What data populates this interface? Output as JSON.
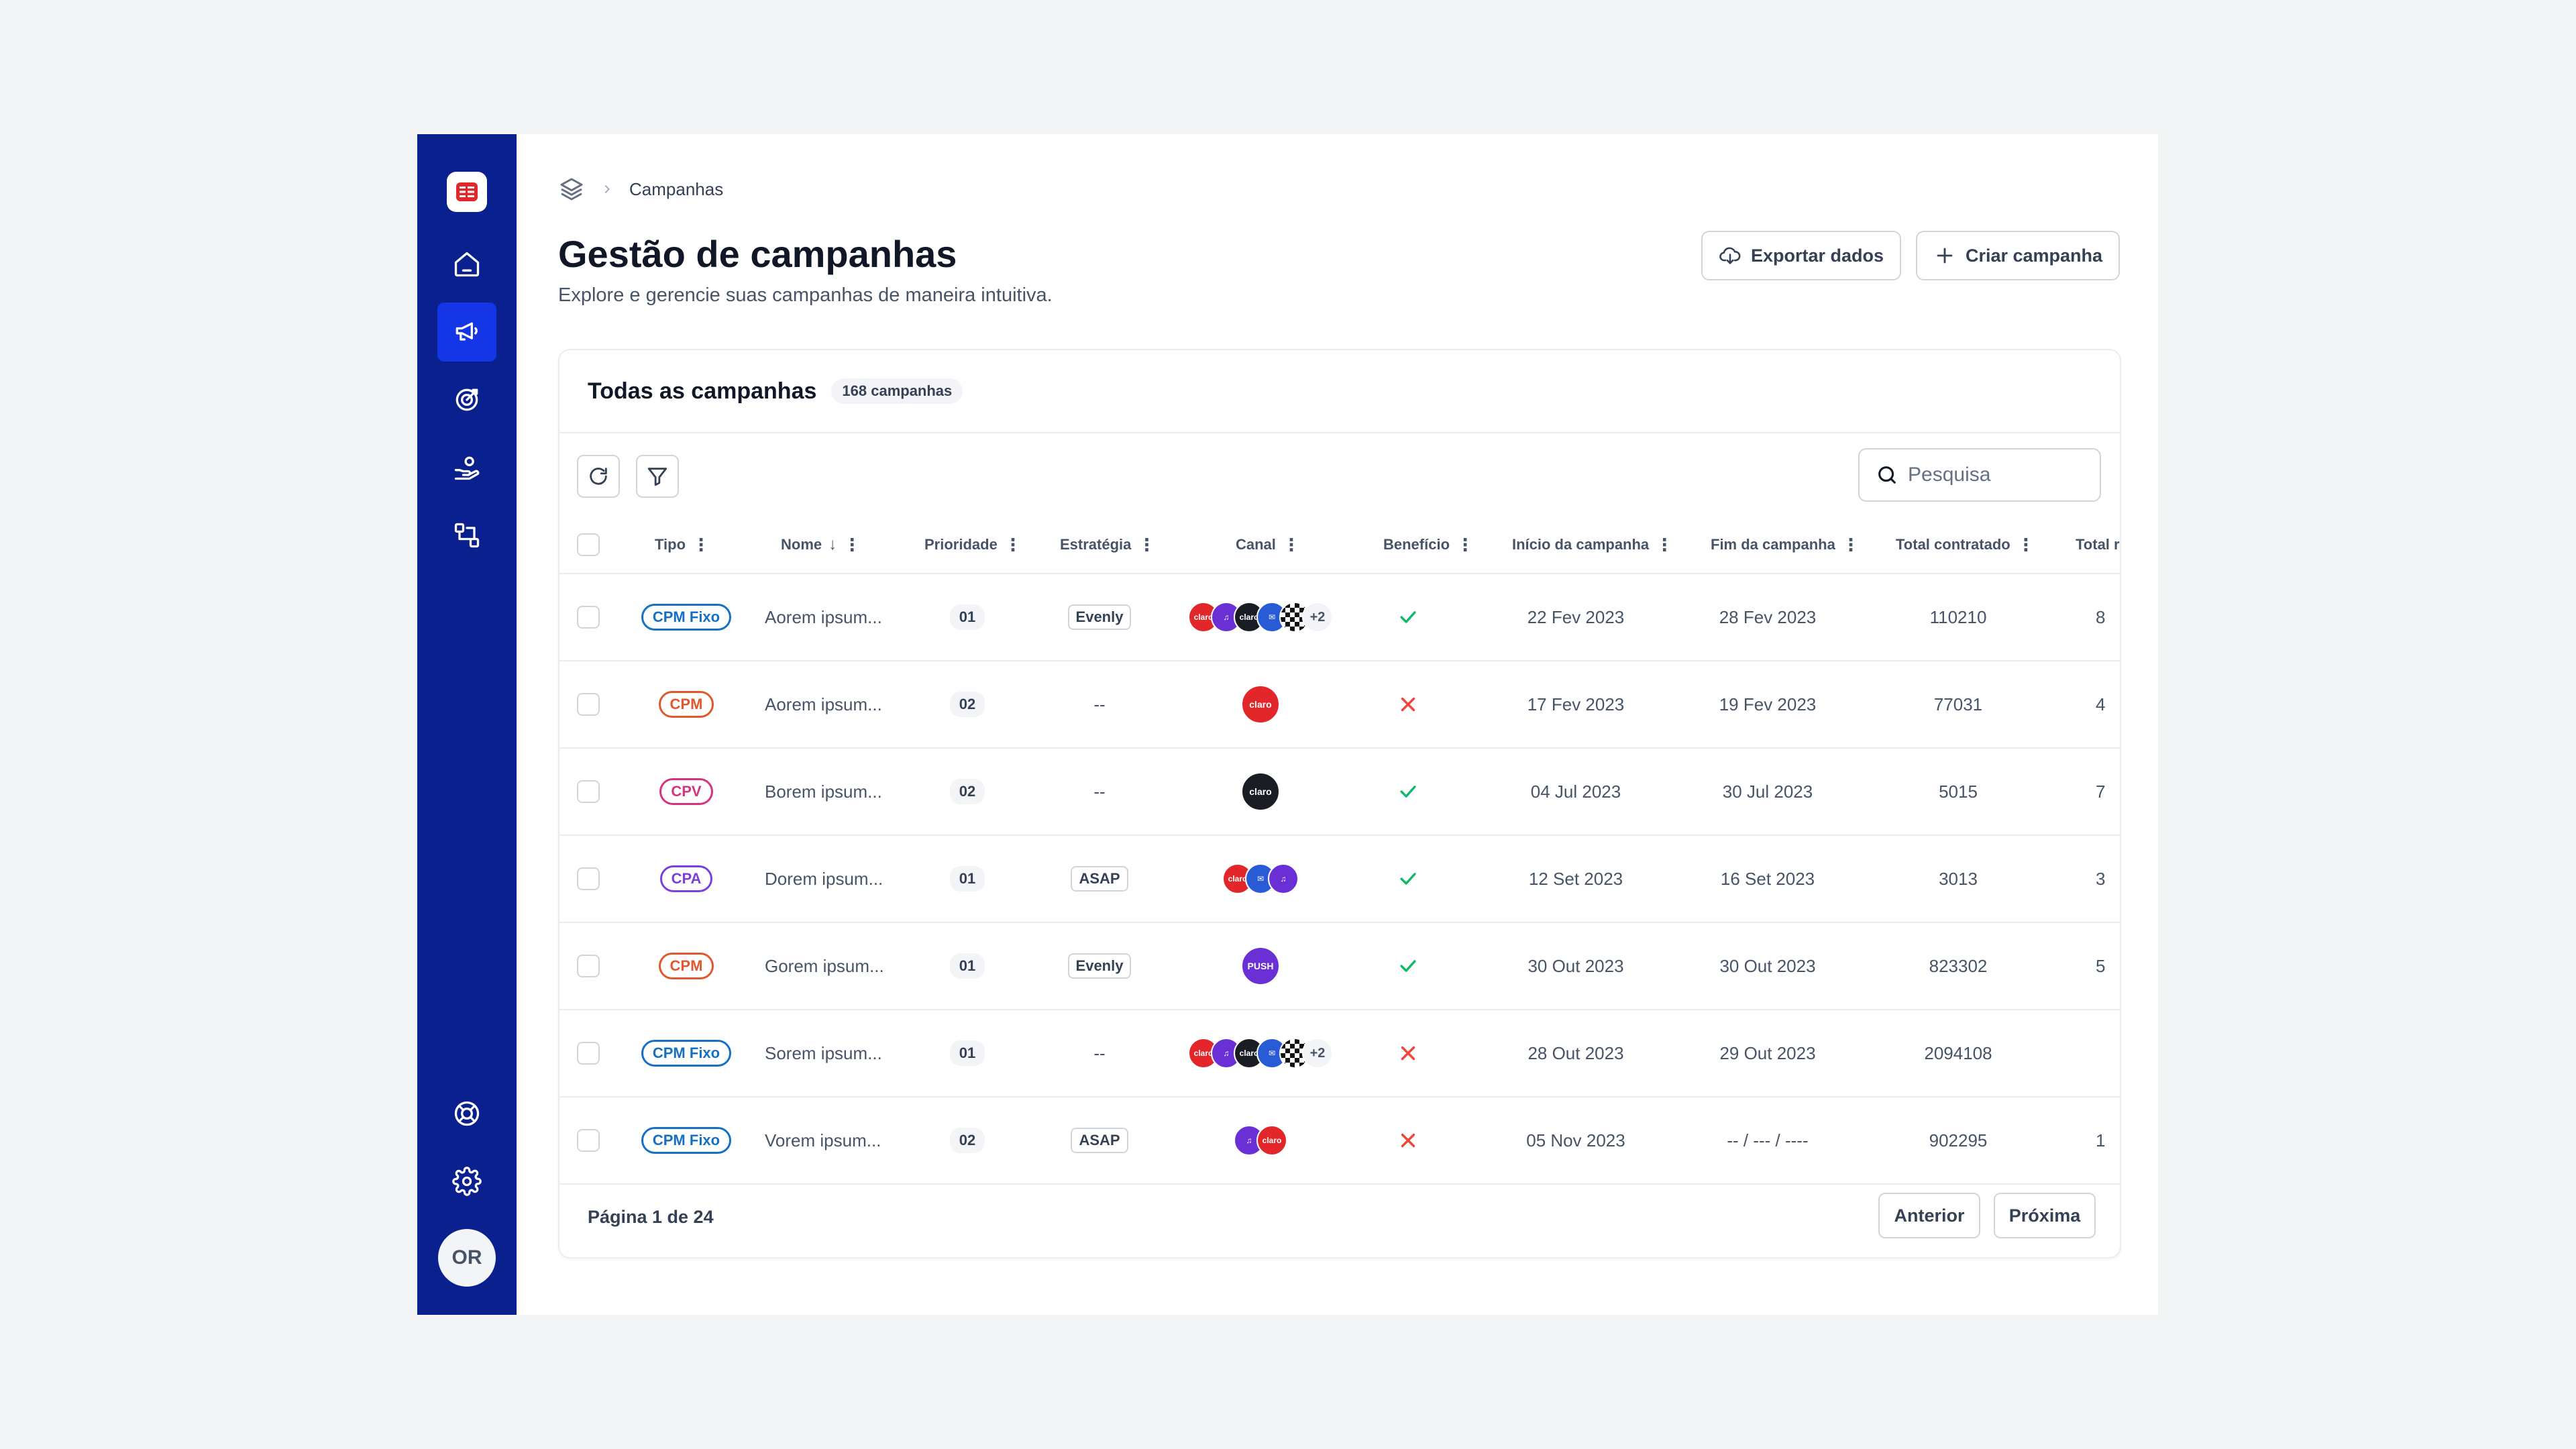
{
  "breadcrumb": {
    "current": "Campanhas"
  },
  "header": {
    "title": "Gestão de campanhas",
    "subtitle": "Explore e gerencie suas campanhas de maneira intuitiva.",
    "export_label": "Exportar dados",
    "create_label": "Criar campanha"
  },
  "card": {
    "title": "Todas as campanhas",
    "count": "168 campanhas"
  },
  "search": {
    "placeholder": "Pesquisa"
  },
  "table": {
    "columns": {
      "tipo": "Tipo",
      "nome": "Nome",
      "prioridade": "Prioridade",
      "estrategia": "Estratégia",
      "canal": "Canal",
      "beneficio": "Benefício",
      "inicio": "Início da campanha",
      "fim": "Fim da campanha",
      "total_contratado": "Total contratado",
      "total_re": "Total re"
    },
    "rows": [
      {
        "tipo": "CPM Fixo",
        "nome": "Aorem ipsum...",
        "prioridade": "01",
        "estrategia": "Evenly",
        "inicio": "22 Fev 2023",
        "fim": "28 Fev 2023",
        "total": "110210",
        "extra": "8"
      },
      {
        "tipo": "CPM",
        "nome": "Aorem ipsum...",
        "prioridade": "02",
        "estrategia": "--",
        "inicio": "17 Fev 2023",
        "fim": "19 Fev 2023",
        "total": "77031",
        "extra": "4"
      },
      {
        "tipo": "CPV",
        "nome": "Borem ipsum...",
        "prioridade": "02",
        "estrategia": "--",
        "inicio": "04 Jul 2023",
        "fim": "30 Jul 2023",
        "total": "5015",
        "extra": "7"
      },
      {
        "tipo": "CPA",
        "nome": "Dorem ipsum...",
        "prioridade": "01",
        "estrategia": "ASAP",
        "inicio": "12 Set 2023",
        "fim": "16 Set 2023",
        "total": "3013",
        "extra": "3"
      },
      {
        "tipo": "CPM",
        "nome": "Gorem ipsum...",
        "prioridade": "01",
        "estrategia": "Evenly",
        "inicio": "30 Out 2023",
        "fim": "30 Out 2023",
        "total": "823302",
        "extra": "5"
      },
      {
        "tipo": "CPM Fixo",
        "nome": "Sorem ipsum...",
        "prioridade": "01",
        "estrategia": "--",
        "inicio": "28 Out 2023",
        "fim": "29 Out 2023",
        "total": "2094108",
        "extra": ""
      },
      {
        "tipo": "CPM Fixo",
        "nome": "Vorem ipsum...",
        "prioridade": "02",
        "estrategia": "ASAP",
        "inicio": "05 Nov 2023",
        "fim": "-- / --- / ----",
        "total": "902295",
        "extra": "1"
      }
    ],
    "channel_more": "+2"
  },
  "footer": {
    "page_info": "Página 1 de 24",
    "prev_label": "Anterior",
    "next_label": "Próxima"
  },
  "user": {
    "initials": "OR"
  },
  "colors": {
    "sidebar": "#0a208f",
    "sidebar_active": "#1436e6",
    "cpm_fixo": "#1570c4",
    "cpm": "#e2572b",
    "cpv": "#d6337e",
    "cpa": "#7a3fe0",
    "check": "#12b76a",
    "cross": "#f04438"
  }
}
